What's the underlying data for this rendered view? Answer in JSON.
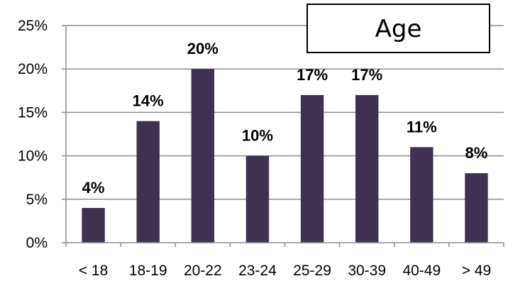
{
  "chart_data": {
    "type": "bar",
    "title": "Age",
    "categories": [
      "< 18",
      "18-19",
      "20-22",
      "23-24",
      "25-29",
      "30-39",
      "40-49",
      "> 49"
    ],
    "values": [
      4,
      14,
      20,
      10,
      17,
      17,
      11,
      8
    ],
    "data_labels": [
      "4%",
      "14%",
      "20%",
      "10%",
      "17%",
      "17%",
      "11%",
      "8%"
    ],
    "y_ticks": [
      0,
      5,
      10,
      15,
      20,
      25
    ],
    "y_tick_labels": [
      "0%",
      "5%",
      "10%",
      "15%",
      "20%",
      "25%"
    ],
    "ylim": [
      0,
      25
    ],
    "grid": true,
    "legend": "none",
    "title_position": "top-right",
    "colors": {
      "bar": "#3F3151",
      "grid": "#8C8C8C",
      "axis": "#8C8C8C",
      "text": "#000000"
    }
  }
}
